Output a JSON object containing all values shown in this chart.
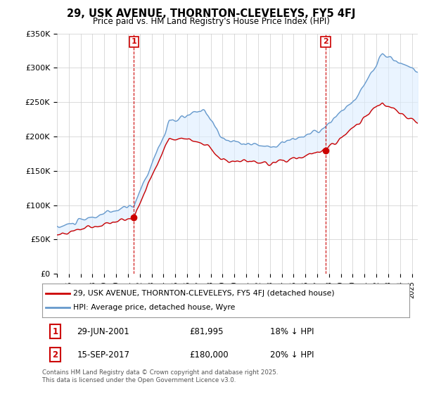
{
  "title": "29, USK AVENUE, THORNTON-CLEVELEYS, FY5 4FJ",
  "subtitle": "Price paid vs. HM Land Registry's House Price Index (HPI)",
  "ylabel_ticks": [
    "£0",
    "£50K",
    "£100K",
    "£150K",
    "£200K",
    "£250K",
    "£300K",
    "£350K"
  ],
  "ylim": [
    0,
    350000
  ],
  "xlim_start": 1995.0,
  "xlim_end": 2025.5,
  "marker1_date": 2001.49,
  "marker2_date": 2017.71,
  "legend_line1": "29, USK AVENUE, THORNTON-CLEVELEYS, FY5 4FJ (detached house)",
  "legend_line2": "HPI: Average price, detached house, Wyre",
  "ann1_date": "29-JUN-2001",
  "ann1_price": "£81,995",
  "ann1_hpi": "18% ↓ HPI",
  "ann2_date": "15-SEP-2017",
  "ann2_price": "£180,000",
  "ann2_hpi": "20% ↓ HPI",
  "footer": "Contains HM Land Registry data © Crown copyright and database right 2025.\nThis data is licensed under the Open Government Licence v3.0.",
  "line_color_price": "#cc0000",
  "line_color_hpi": "#6699cc",
  "fill_color_hpi": "#ddeeff",
  "marker_color": "#cc0000",
  "grid_color": "#cccccc",
  "background_color": "#ffffff"
}
